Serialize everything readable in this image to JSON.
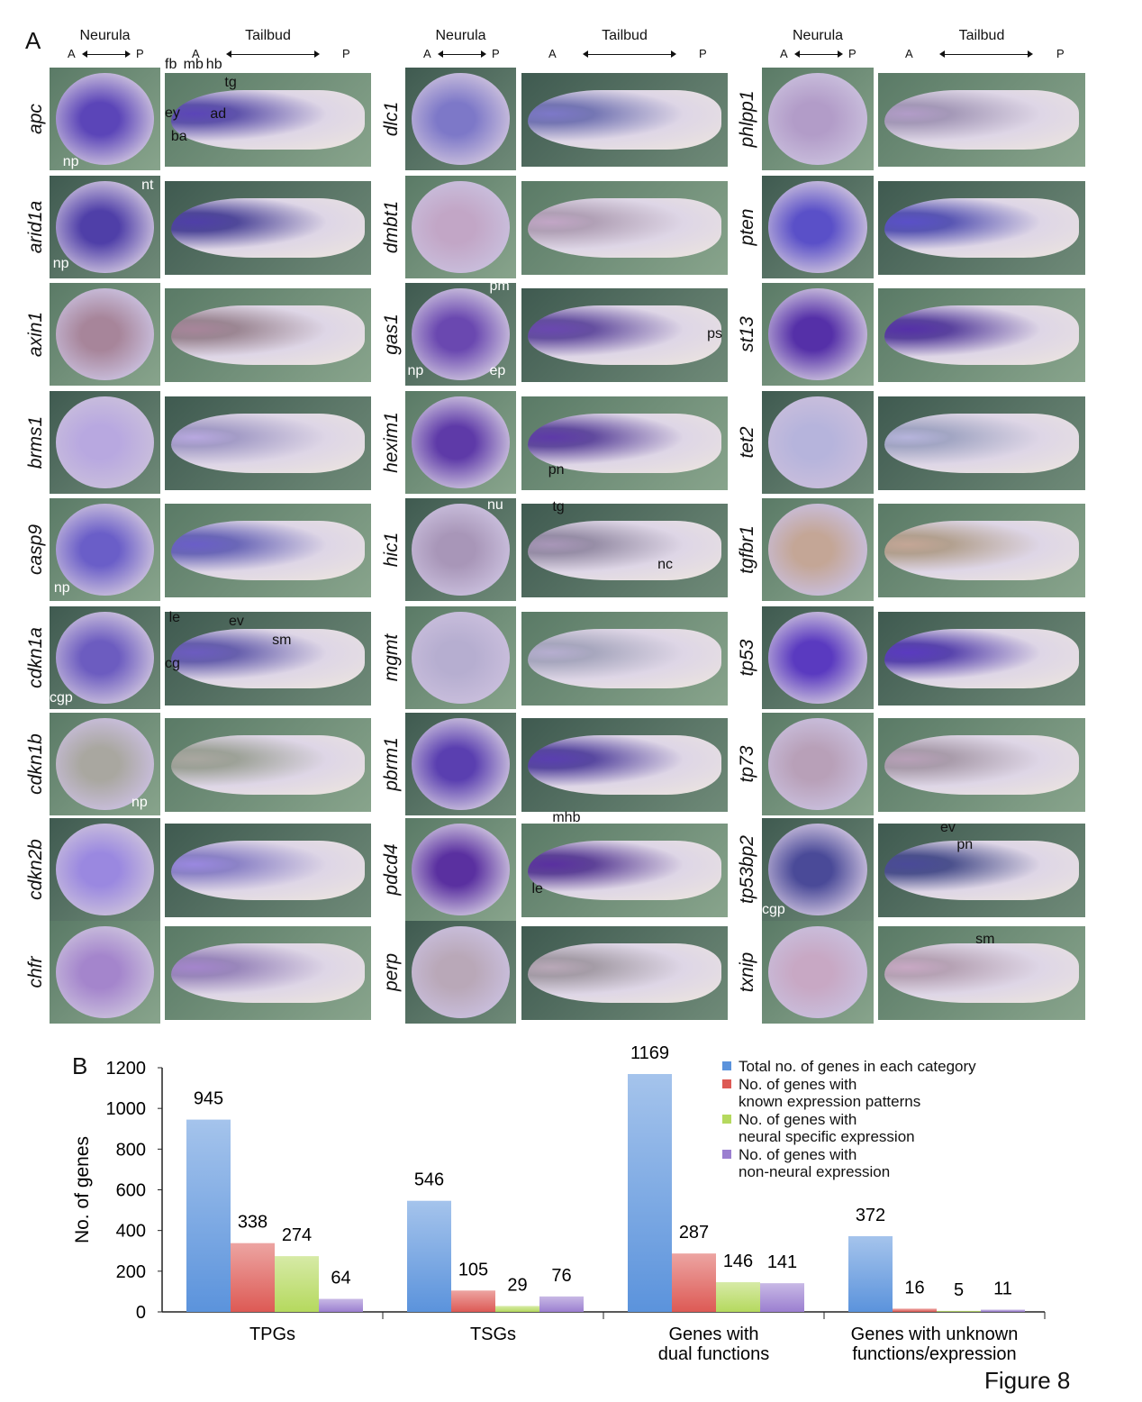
{
  "panel_a": {
    "letter": "A",
    "neurula_label": "Neurula",
    "tailbud_label": "Tailbud",
    "anterior": "A",
    "posterior": "P",
    "columns": [
      {
        "rows": [
          {
            "gene": "apc",
            "stain": "#5b45b8",
            "neurula_ann": [
              "np"
            ],
            "tailbud_ann": [
              "fb",
              "mb",
              "hb",
              "tg",
              "ey",
              "ad",
              "ba"
            ]
          },
          {
            "gene": "arid1a",
            "stain": "#4f3fa8",
            "neurula_ann": [
              "nt",
              "np"
            ],
            "tailbud_ann": []
          },
          {
            "gene": "axin1",
            "stain": "#a7859a",
            "neurula_ann": [],
            "tailbud_ann": []
          },
          {
            "gene": "brms1",
            "stain": "#b8a8e0",
            "neurula_ann": [],
            "tailbud_ann": []
          },
          {
            "gene": "casp9",
            "stain": "#6a5ec8",
            "neurula_ann": [
              "np"
            ],
            "tailbud_ann": []
          },
          {
            "gene": "cdkn1a",
            "stain": "#6c5cc0",
            "neurula_ann": [
              "cgp"
            ],
            "tailbud_ann": [
              "le",
              "ev",
              "cg",
              "sm"
            ]
          },
          {
            "gene": "cdkn1b",
            "stain": "#a9a7a0",
            "neurula_ann": [
              "np"
            ],
            "tailbud_ann": []
          },
          {
            "gene": "cdkn2b",
            "stain": "#9a88e0",
            "neurula_ann": [],
            "tailbud_ann": []
          },
          {
            "gene": "chfr",
            "stain": "#a485cc",
            "neurula_ann": [],
            "tailbud_ann": []
          }
        ]
      },
      {
        "rows": [
          {
            "gene": "dlc1",
            "stain": "#7d78c8",
            "neurula_ann": [],
            "tailbud_ann": []
          },
          {
            "gene": "dmbt1",
            "stain": "#c2a6c6",
            "neurula_ann": [],
            "tailbud_ann": []
          },
          {
            "gene": "gas1",
            "stain": "#6a48b0",
            "neurula_ann": [
              "pm",
              "np",
              "ep"
            ],
            "tailbud_ann": [
              "ps"
            ]
          },
          {
            "gene": "hexim1",
            "stain": "#5e3aa8",
            "neurula_ann": [],
            "tailbud_ann": [
              "pn"
            ]
          },
          {
            "gene": "hic1",
            "stain": "#a896b8",
            "neurula_ann": [
              "nu"
            ],
            "tailbud_ann": [
              "tg",
              "nc"
            ]
          },
          {
            "gene": "mgmt",
            "stain": "#b6aed0",
            "neurula_ann": [],
            "tailbud_ann": []
          },
          {
            "gene": "pbrm1",
            "stain": "#5a3fb0",
            "neurula_ann": [],
            "tailbud_ann": []
          },
          {
            "gene": "pdcd4",
            "stain": "#5a30a0",
            "neurula_ann": [],
            "tailbud_ann": [
              "mhb",
              "le"
            ]
          },
          {
            "gene": "perp",
            "stain": "#b9a8b8",
            "neurula_ann": [],
            "tailbud_ann": []
          }
        ]
      },
      {
        "rows": [
          {
            "gene": "phlpp1",
            "stain": "#b29cc8",
            "neurula_ann": [],
            "tailbud_ann": []
          },
          {
            "gene": "pten",
            "stain": "#5a50c8",
            "neurula_ann": [],
            "tailbud_ann": []
          },
          {
            "gene": "st13",
            "stain": "#5530a8",
            "neurula_ann": [],
            "tailbud_ann": []
          },
          {
            "gene": "tet2",
            "stain": "#b6b4dc",
            "neurula_ann": [],
            "tailbud_ann": []
          },
          {
            "gene": "tgfbr1",
            "stain": "#c4a696",
            "neurula_ann": [],
            "tailbud_ann": []
          },
          {
            "gene": "tp53",
            "stain": "#5a3ac0",
            "neurula_ann": [],
            "tailbud_ann": []
          },
          {
            "gene": "tp73",
            "stain": "#b8a0b8",
            "neurula_ann": [],
            "tailbud_ann": []
          },
          {
            "gene": "tp53bp2",
            "stain": "#4a4a98",
            "neurula_ann": [
              "cgp"
            ],
            "tailbud_ann": [
              "ev",
              "pn"
            ]
          },
          {
            "gene": "txnip",
            "stain": "#c8a8c4",
            "neurula_ann": [],
            "tailbud_ann": [
              "sm"
            ]
          }
        ]
      }
    ]
  },
  "panel_b": {
    "letter": "B"
  },
  "figure_label": "Figure 8",
  "chart_data": {
    "type": "bar",
    "title": "",
    "xlabel": "",
    "ylabel": "No. of genes",
    "ylim": [
      0,
      1200
    ],
    "yticks": [
      0,
      200,
      400,
      600,
      800,
      1000,
      1200
    ],
    "grid": false,
    "legend_placement": "top-right",
    "categories": [
      [
        "TPGs"
      ],
      [
        "TSGs"
      ],
      [
        "Genes with",
        "dual functions"
      ],
      [
        "Genes with unknown",
        "functions/expression"
      ]
    ],
    "series": [
      {
        "name": "Total no. of genes in each category",
        "legend_lines": [
          "Total no. of genes in each category"
        ],
        "color": "#5b93dc",
        "values": [
          945,
          546,
          1169,
          372
        ]
      },
      {
        "name": "No. of genes with known expression patterns",
        "legend_lines": [
          "No. of genes with",
          "known expression patterns"
        ],
        "color": "#dd5a55",
        "values": [
          338,
          105,
          287,
          16
        ]
      },
      {
        "name": "No. of genes with neural specific expression",
        "legend_lines": [
          "No. of genes with",
          "neural specific expression"
        ],
        "color": "#b5d95e",
        "values": [
          274,
          29,
          146,
          5
        ]
      },
      {
        "name": "No. of genes with non-neural expression",
        "legend_lines": [
          "No. of genes with",
          "non-neural expression"
        ],
        "color": "#9b7fd0",
        "values": [
          64,
          76,
          141,
          11
        ]
      }
    ]
  }
}
